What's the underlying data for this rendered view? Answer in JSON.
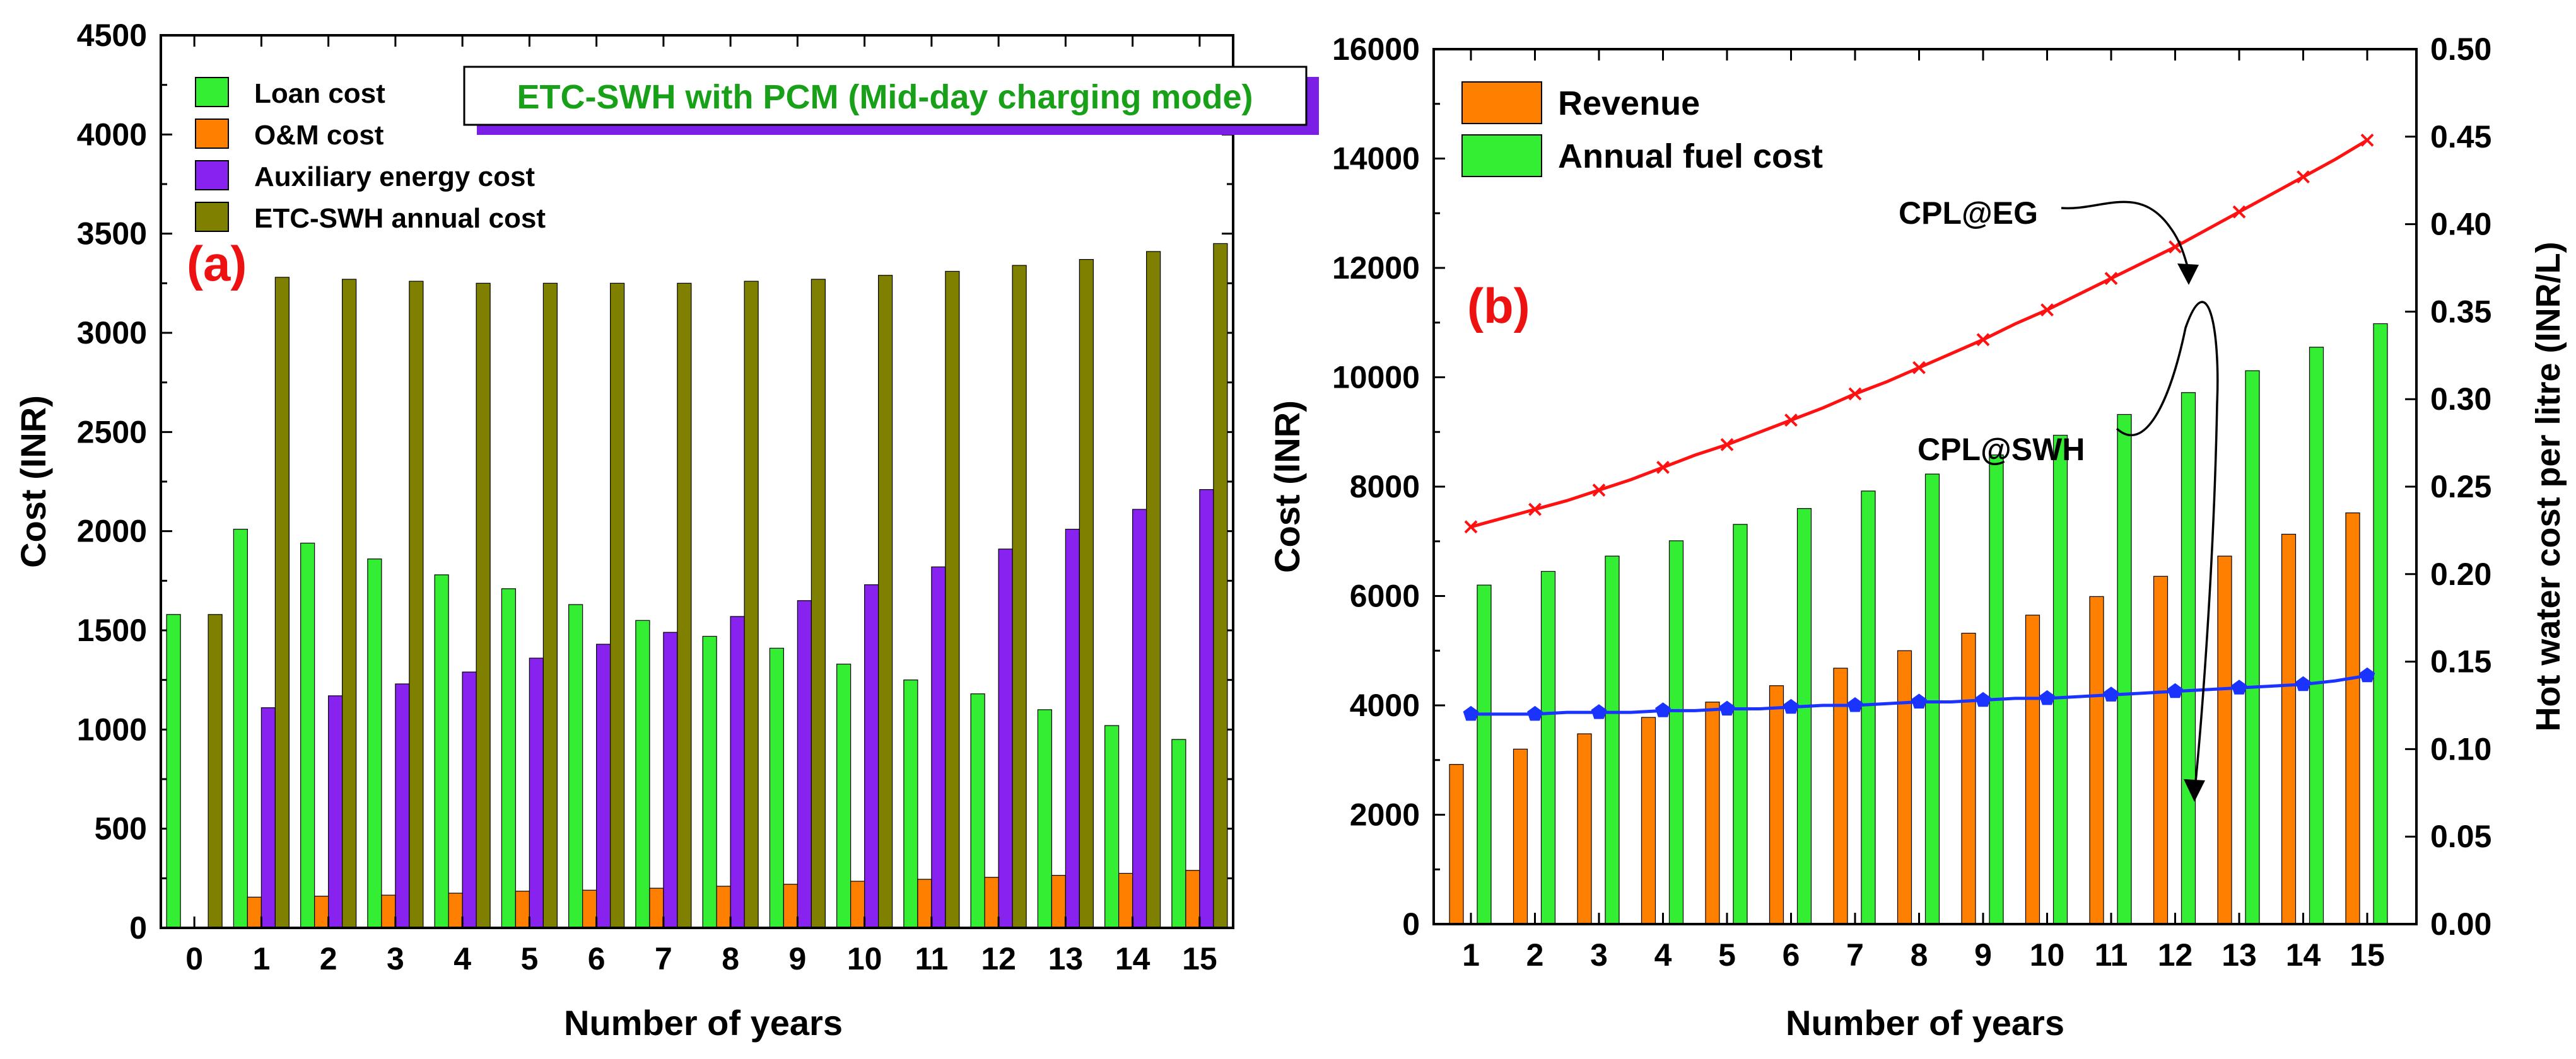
{
  "chart_data": [
    {
      "type": "bar",
      "label": "(a)",
      "xlabel": "Number of years",
      "ylabel": "Cost (INR)",
      "ylim": [
        0,
        4500
      ],
      "yticks": [
        0,
        500,
        1000,
        1500,
        2000,
        2500,
        3000,
        3500,
        4000,
        4500
      ],
      "categories": [
        "0",
        "1",
        "2",
        "3",
        "4",
        "5",
        "6",
        "7",
        "8",
        "9",
        "10",
        "11",
        "12",
        "13",
        "14",
        "15"
      ],
      "legend_position": "top-left",
      "annotation": "ETC-SWH with PCM (Mid-day charging mode)",
      "series": [
        {
          "name": "Loan cost",
          "color": "#33ee33",
          "values": [
            1580,
            2010,
            1940,
            1860,
            1780,
            1710,
            1630,
            1550,
            1470,
            1410,
            1330,
            1250,
            1180,
            1100,
            1020,
            950
          ]
        },
        {
          "name": "O&M cost",
          "color": "#ff7f00",
          "values": [
            null,
            155,
            160,
            165,
            175,
            185,
            190,
            200,
            210,
            220,
            235,
            245,
            255,
            265,
            275,
            290
          ]
        },
        {
          "name": "Auxiliary energy cost",
          "color": "#8822ee",
          "values": [
            null,
            1110,
            1170,
            1230,
            1290,
            1360,
            1430,
            1490,
            1570,
            1650,
            1730,
            1820,
            1910,
            2010,
            2110,
            2210
          ]
        },
        {
          "name": "ETC-SWH annual cost",
          "color": "#808000",
          "values": [
            1580,
            3280,
            3270,
            3260,
            3250,
            3250,
            3250,
            3250,
            3260,
            3270,
            3290,
            3310,
            3340,
            3370,
            3410,
            3450
          ]
        }
      ]
    },
    {
      "type": "bar+line",
      "label": "(b)",
      "xlabel": "Number of years",
      "ylabel": "Cost (INR)",
      "ylabel_right": "Hot water cost per litre (INR/L)",
      "ylim": [
        0,
        16000
      ],
      "ylim_right": [
        0,
        0.5
      ],
      "yticks": [
        0,
        2000,
        4000,
        6000,
        8000,
        10000,
        12000,
        14000,
        16000
      ],
      "yticks_right": [
        "0.00",
        "0.05",
        "0.10",
        "0.15",
        "0.20",
        "0.25",
        "0.30",
        "0.35",
        "0.40",
        "0.45",
        "0.50"
      ],
      "categories": [
        "1",
        "2",
        "3",
        "4",
        "5",
        "6",
        "7",
        "8",
        "9",
        "10",
        "11",
        "12",
        "13",
        "14",
        "15"
      ],
      "legend_position": "top-left",
      "bar_series": [
        {
          "name": "Revenue",
          "color": "#ff7f00",
          "values": [
            2920,
            3200,
            3480,
            3780,
            4060,
            4360,
            4680,
            5000,
            5320,
            5650,
            5990,
            6360,
            6730,
            7130,
            7520
          ]
        },
        {
          "name": "Annual fuel cost",
          "color": "#33ee33",
          "values": [
            6200,
            6450,
            6730,
            7010,
            7310,
            7600,
            7920,
            8230,
            8580,
            8940,
            9320,
            9720,
            10120,
            10550,
            10980
          ]
        }
      ],
      "line_series": [
        {
          "name": "CPL@EG",
          "color": "#ff1111",
          "axis": "right",
          "x": [
            1,
            1.5,
            2,
            2.5,
            3,
            3.5,
            4,
            4.5,
            5,
            5.5,
            6,
            6.5,
            7,
            7.5,
            8,
            8.5,
            9,
            9.5,
            10,
            10.5,
            11,
            11.5,
            12,
            12.5,
            13,
            13.5,
            14,
            14.5,
            15
          ],
          "values": [
            0.227,
            0.232,
            0.237,
            0.242,
            0.248,
            0.254,
            0.261,
            0.268,
            0.274,
            0.281,
            0.288,
            0.295,
            0.303,
            0.31,
            0.318,
            0.326,
            0.334,
            0.343,
            0.351,
            0.36,
            0.369,
            0.378,
            0.387,
            0.397,
            0.407,
            0.417,
            0.427,
            0.437,
            0.448
          ]
        },
        {
          "name": "CPL@SWH",
          "color": "#1a33ff",
          "axis": "right",
          "x": [
            1,
            1.5,
            2,
            2.5,
            3,
            3.5,
            4,
            4.5,
            5,
            5.5,
            6,
            6.5,
            7,
            7.5,
            8,
            8.5,
            9,
            9.5,
            10,
            10.5,
            11,
            11.5,
            12,
            12.5,
            13,
            13.5,
            14,
            14.5,
            15
          ],
          "values": [
            0.12,
            0.12,
            0.12,
            0.121,
            0.121,
            0.121,
            0.122,
            0.122,
            0.123,
            0.123,
            0.124,
            0.125,
            0.125,
            0.126,
            0.127,
            0.127,
            0.128,
            0.129,
            0.129,
            0.13,
            0.131,
            0.132,
            0.133,
            0.134,
            0.135,
            0.136,
            0.137,
            0.139,
            0.142
          ]
        }
      ]
    }
  ]
}
